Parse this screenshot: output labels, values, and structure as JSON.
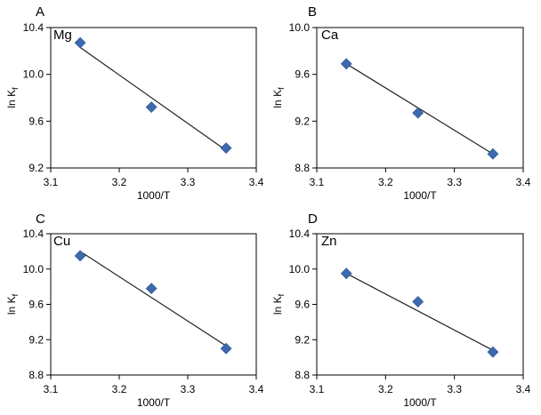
{
  "chart_data": [
    {
      "type": "scatter",
      "panel": "A",
      "label": "Mg",
      "xlabel": "1000/T",
      "ylabel_main": "ln K",
      "ylabel_sub": "f",
      "xlim": [
        3.1,
        3.4
      ],
      "ylim": [
        9.2,
        10.4
      ],
      "xticks": [
        "3.1",
        "3.2",
        "3.3",
        "3.4"
      ],
      "yticks": [
        "9.2",
        "9.6",
        "10.0",
        "10.4"
      ],
      "x": [
        3.143,
        3.247,
        3.356
      ],
      "y": [
        10.27,
        9.72,
        9.37
      ],
      "fit": {
        "x": [
          3.143,
          3.356
        ],
        "y": [
          10.23,
          9.35
        ]
      },
      "marker": "diamond",
      "color": "#3D6AAE"
    },
    {
      "type": "scatter",
      "panel": "B",
      "label": "Ca",
      "xlabel": "1000/T",
      "ylabel_main": "ln K",
      "ylabel_sub": "f",
      "xlim": [
        3.1,
        3.4
      ],
      "ylim": [
        8.8,
        10.0
      ],
      "xticks": [
        "3.1",
        "3.2",
        "3.3",
        "3.4"
      ],
      "yticks": [
        "8.8",
        "9.2",
        "9.6",
        "10.0"
      ],
      "x": [
        3.143,
        3.247,
        3.356
      ],
      "y": [
        9.69,
        9.27,
        8.92
      ],
      "fit": {
        "x": [
          3.143,
          3.356
        ],
        "y": [
          9.69,
          8.92
        ]
      },
      "marker": "diamond",
      "color": "#3D6AAE"
    },
    {
      "type": "scatter",
      "panel": "C",
      "label": "Cu",
      "xlabel": "1000/T",
      "ylabel_main": "ln K",
      "ylabel_sub": "f",
      "xlim": [
        3.1,
        3.4
      ],
      "ylim": [
        8.8,
        10.4
      ],
      "xticks": [
        "3.1",
        "3.2",
        "3.3",
        "3.4"
      ],
      "yticks": [
        "8.8",
        "9.2",
        "9.6",
        "10.0",
        "10.4"
      ],
      "x": [
        3.143,
        3.247,
        3.356
      ],
      "y": [
        10.15,
        9.78,
        9.1
      ],
      "fit": {
        "x": [
          3.143,
          3.356
        ],
        "y": [
          10.2,
          9.13
        ]
      },
      "marker": "diamond",
      "color": "#3D6AAE"
    },
    {
      "type": "scatter",
      "panel": "D",
      "label": "Zn",
      "xlabel": "1000/T",
      "ylabel_main": "ln K",
      "ylabel_sub": "f",
      "xlim": [
        3.1,
        3.4
      ],
      "ylim": [
        8.8,
        10.4
      ],
      "xticks": [
        "3.1",
        "3.2",
        "3.3",
        "3.4"
      ],
      "yticks": [
        "8.8",
        "9.2",
        "9.6",
        "10.0",
        "10.4"
      ],
      "x": [
        3.143,
        3.247,
        3.356
      ],
      "y": [
        9.95,
        9.63,
        9.06
      ],
      "fit": {
        "x": [
          3.143,
          3.356
        ],
        "y": [
          9.95,
          9.08
        ]
      },
      "marker": "diamond",
      "color": "#3D6AAE"
    }
  ]
}
